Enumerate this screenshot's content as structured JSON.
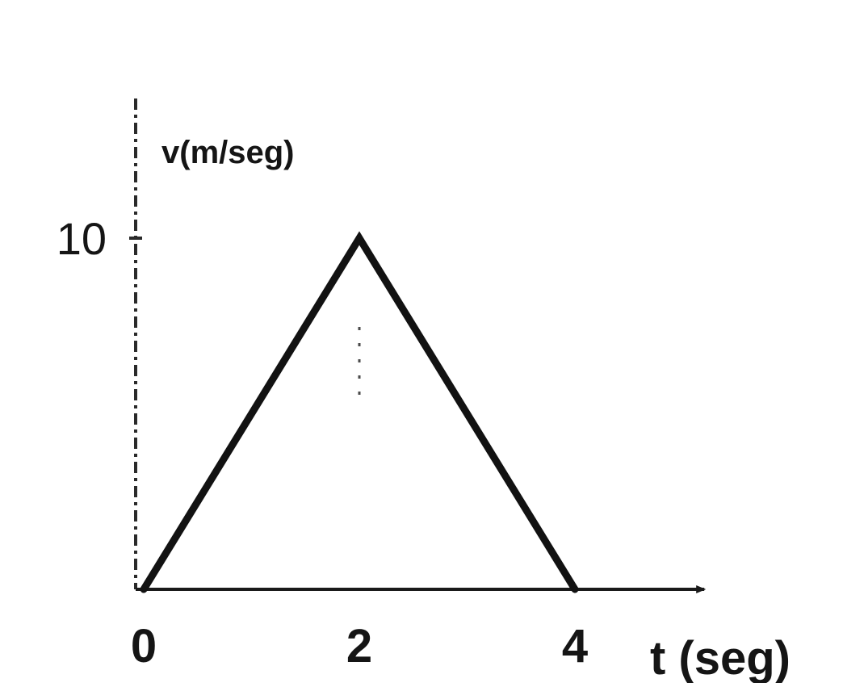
{
  "chart_data": {
    "type": "line",
    "title": "",
    "xlabel": "t (seg)",
    "ylabel": "v(m/seg)",
    "x": [
      0,
      2,
      4
    ],
    "series": [
      {
        "values": [
          0,
          10,
          0
        ]
      }
    ],
    "x_ticks": [
      "0",
      "2",
      "4"
    ],
    "y_ticks": [
      "10"
    ],
    "xlim": [
      0,
      5.2
    ],
    "ylim": [
      0,
      10
    ],
    "grid": false,
    "legend": "none",
    "colors": {
      "line": "#121212",
      "axis": "#1a1a1a",
      "text": "#151515",
      "background": "#ffffff"
    }
  }
}
